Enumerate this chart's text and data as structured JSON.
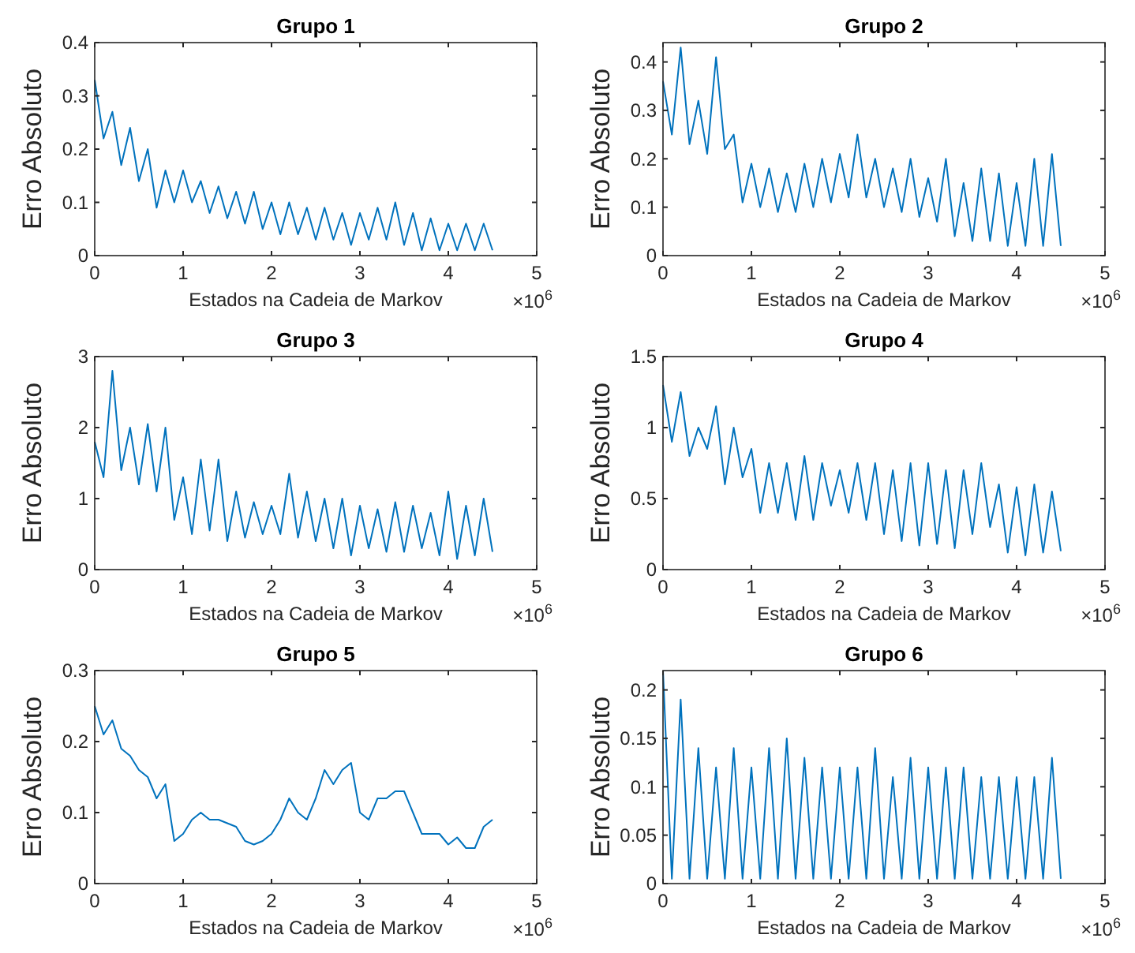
{
  "chart_data": [
    {
      "type": "line",
      "title": "Grupo 1",
      "xlabel": "Estados na Cadeia de Markov",
      "ylabel": "Erro Absoluto",
      "annotations": [
        "×10$^{6}$"
      ],
      "xlim": [
        0,
        5
      ],
      "xticks": [
        0,
        1,
        2,
        3,
        4,
        5
      ],
      "ylim": [
        0,
        0.4
      ],
      "yticks": [
        0,
        0.1,
        0.2,
        0.3,
        0.4
      ],
      "x": [
        0,
        0.1,
        0.2,
        0.3,
        0.4,
        0.5,
        0.6,
        0.7,
        0.8,
        0.9,
        1.0,
        1.1,
        1.2,
        1.3,
        1.4,
        1.5,
        1.6,
        1.7,
        1.8,
        1.9,
        2.0,
        2.1,
        2.2,
        2.3,
        2.4,
        2.5,
        2.6,
        2.7,
        2.8,
        2.9,
        3.0,
        3.1,
        3.2,
        3.3,
        3.4,
        3.5,
        3.6,
        3.7,
        3.8,
        3.9,
        4.0,
        4.1,
        4.2,
        4.3,
        4.4,
        4.5
      ],
      "series": [
        {
          "color": "#0072bd",
          "values": [
            0.33,
            0.22,
            0.27,
            0.17,
            0.24,
            0.14,
            0.2,
            0.09,
            0.16,
            0.1,
            0.16,
            0.1,
            0.14,
            0.08,
            0.13,
            0.07,
            0.12,
            0.06,
            0.12,
            0.05,
            0.1,
            0.04,
            0.1,
            0.04,
            0.09,
            0.03,
            0.09,
            0.03,
            0.08,
            0.02,
            0.08,
            0.03,
            0.09,
            0.03,
            0.1,
            0.02,
            0.08,
            0.01,
            0.07,
            0.01,
            0.06,
            0.01,
            0.06,
            0.01,
            0.06,
            0.01
          ]
        }
      ]
    },
    {
      "type": "line",
      "title": "Grupo 2",
      "xlabel": "Estados na Cadeia de Markov",
      "ylabel": "Erro Absoluto",
      "annotations": [
        "×10$^{6}$"
      ],
      "xlim": [
        0,
        5
      ],
      "xticks": [
        0,
        1,
        2,
        3,
        4,
        5
      ],
      "ylim": [
        0,
        0.44
      ],
      "yticks": [
        0,
        0.1,
        0.2,
        0.3,
        0.4
      ],
      "x": [
        0,
        0.1,
        0.2,
        0.3,
        0.4,
        0.5,
        0.6,
        0.7,
        0.8,
        0.9,
        1.0,
        1.1,
        1.2,
        1.3,
        1.4,
        1.5,
        1.6,
        1.7,
        1.8,
        1.9,
        2.0,
        2.1,
        2.2,
        2.3,
        2.4,
        2.5,
        2.6,
        2.7,
        2.8,
        2.9,
        3.0,
        3.1,
        3.2,
        3.3,
        3.4,
        3.5,
        3.6,
        3.7,
        3.8,
        3.9,
        4.0,
        4.1,
        4.2,
        4.3,
        4.4,
        4.5
      ],
      "series": [
        {
          "color": "#0072bd",
          "values": [
            0.36,
            0.25,
            0.43,
            0.23,
            0.32,
            0.21,
            0.41,
            0.22,
            0.25,
            0.11,
            0.19,
            0.1,
            0.18,
            0.09,
            0.17,
            0.09,
            0.19,
            0.1,
            0.2,
            0.11,
            0.21,
            0.12,
            0.25,
            0.12,
            0.2,
            0.1,
            0.18,
            0.09,
            0.2,
            0.08,
            0.16,
            0.07,
            0.2,
            0.04,
            0.15,
            0.03,
            0.18,
            0.03,
            0.17,
            0.02,
            0.15,
            0.02,
            0.2,
            0.02,
            0.21,
            0.02
          ]
        }
      ]
    },
    {
      "type": "line",
      "title": "Grupo 3",
      "xlabel": "Estados na Cadeia de Markov",
      "ylabel": "Erro Absoluto",
      "annotations": [
        "×10$^{6}$"
      ],
      "xlim": [
        0,
        5
      ],
      "xticks": [
        0,
        1,
        2,
        3,
        4,
        5
      ],
      "ylim": [
        0,
        3
      ],
      "yticks": [
        0,
        1,
        2,
        3
      ],
      "x": [
        0,
        0.1,
        0.2,
        0.3,
        0.4,
        0.5,
        0.6,
        0.7,
        0.8,
        0.9,
        1.0,
        1.1,
        1.2,
        1.3,
        1.4,
        1.5,
        1.6,
        1.7,
        1.8,
        1.9,
        2.0,
        2.1,
        2.2,
        2.3,
        2.4,
        2.5,
        2.6,
        2.7,
        2.8,
        2.9,
        3.0,
        3.1,
        3.2,
        3.3,
        3.4,
        3.5,
        3.6,
        3.7,
        3.8,
        3.9,
        4.0,
        4.1,
        4.2,
        4.3,
        4.4,
        4.5
      ],
      "series": [
        {
          "color": "#0072bd",
          "values": [
            1.8,
            1.3,
            2.8,
            1.4,
            2.0,
            1.2,
            2.05,
            1.1,
            2.0,
            0.7,
            1.3,
            0.5,
            1.55,
            0.55,
            1.55,
            0.4,
            1.1,
            0.45,
            0.95,
            0.5,
            0.9,
            0.5,
            1.35,
            0.45,
            1.1,
            0.4,
            1.0,
            0.3,
            1.0,
            0.2,
            0.9,
            0.3,
            0.85,
            0.25,
            0.95,
            0.25,
            0.9,
            0.3,
            0.8,
            0.2,
            1.1,
            0.15,
            0.9,
            0.2,
            1.0,
            0.25
          ]
        }
      ]
    },
    {
      "type": "line",
      "title": "Grupo 4",
      "xlabel": "Estados na Cadeia de Markov",
      "ylabel": "Erro Absoluto",
      "annotations": [
        "×10$^{6}$"
      ],
      "xlim": [
        0,
        5
      ],
      "xticks": [
        0,
        1,
        2,
        3,
        4,
        5
      ],
      "ylim": [
        0,
        1.5
      ],
      "yticks": [
        0,
        0.5,
        1,
        1.5
      ],
      "x": [
        0,
        0.1,
        0.2,
        0.3,
        0.4,
        0.5,
        0.6,
        0.7,
        0.8,
        0.9,
        1.0,
        1.1,
        1.2,
        1.3,
        1.4,
        1.5,
        1.6,
        1.7,
        1.8,
        1.9,
        2.0,
        2.1,
        2.2,
        2.3,
        2.4,
        2.5,
        2.6,
        2.7,
        2.8,
        2.9,
        3.0,
        3.1,
        3.2,
        3.3,
        3.4,
        3.5,
        3.6,
        3.7,
        3.8,
        3.9,
        4.0,
        4.1,
        4.2,
        4.3,
        4.4,
        4.5
      ],
      "series": [
        {
          "color": "#0072bd",
          "values": [
            1.3,
            0.9,
            1.25,
            0.8,
            1.0,
            0.85,
            1.15,
            0.6,
            1.0,
            0.65,
            0.85,
            0.4,
            0.75,
            0.4,
            0.75,
            0.35,
            0.8,
            0.35,
            0.75,
            0.45,
            0.7,
            0.4,
            0.75,
            0.35,
            0.75,
            0.25,
            0.7,
            0.2,
            0.75,
            0.17,
            0.75,
            0.18,
            0.7,
            0.15,
            0.7,
            0.25,
            0.75,
            0.3,
            0.6,
            0.12,
            0.58,
            0.1,
            0.6,
            0.12,
            0.55,
            0.13
          ]
        }
      ]
    },
    {
      "type": "line",
      "title": "Grupo 5",
      "xlabel": "Estados na Cadeia de Markov",
      "ylabel": "Erro Absoluto",
      "annotations": [
        "×10$^{6}$"
      ],
      "xlim": [
        0,
        5
      ],
      "xticks": [
        0,
        1,
        2,
        3,
        4,
        5
      ],
      "ylim": [
        0,
        0.3
      ],
      "yticks": [
        0,
        0.1,
        0.2,
        0.3
      ],
      "x": [
        0,
        0.1,
        0.2,
        0.3,
        0.4,
        0.5,
        0.6,
        0.7,
        0.8,
        0.9,
        1.0,
        1.1,
        1.2,
        1.3,
        1.4,
        1.5,
        1.6,
        1.7,
        1.8,
        1.9,
        2.0,
        2.1,
        2.2,
        2.3,
        2.4,
        2.5,
        2.6,
        2.7,
        2.8,
        2.9,
        3.0,
        3.1,
        3.2,
        3.3,
        3.4,
        3.5,
        3.6,
        3.7,
        3.8,
        3.9,
        4.0,
        4.1,
        4.2,
        4.3,
        4.4,
        4.5
      ],
      "series": [
        {
          "color": "#0072bd",
          "values": [
            0.25,
            0.21,
            0.23,
            0.19,
            0.18,
            0.16,
            0.15,
            0.12,
            0.14,
            0.06,
            0.07,
            0.09,
            0.1,
            0.09,
            0.09,
            0.085,
            0.08,
            0.06,
            0.055,
            0.06,
            0.07,
            0.09,
            0.12,
            0.1,
            0.09,
            0.12,
            0.16,
            0.14,
            0.16,
            0.17,
            0.1,
            0.09,
            0.12,
            0.12,
            0.13,
            0.13,
            0.1,
            0.07,
            0.07,
            0.07,
            0.055,
            0.065,
            0.05,
            0.05,
            0.08,
            0.09
          ]
        }
      ]
    },
    {
      "type": "line",
      "title": "Grupo 6",
      "xlabel": "Estados na Cadeia de Markov",
      "ylabel": "Erro Absoluto",
      "annotations": [
        "×10$^{6}$"
      ],
      "xlim": [
        0,
        5
      ],
      "xticks": [
        0,
        1,
        2,
        3,
        4,
        5
      ],
      "ylim": [
        0,
        0.22
      ],
      "yticks": [
        0,
        0.05,
        0.1,
        0.15,
        0.2
      ],
      "x": [
        0,
        0.1,
        0.2,
        0.3,
        0.4,
        0.5,
        0.6,
        0.7,
        0.8,
        0.9,
        1.0,
        1.1,
        1.2,
        1.3,
        1.4,
        1.5,
        1.6,
        1.7,
        1.8,
        1.9,
        2.0,
        2.1,
        2.2,
        2.3,
        2.4,
        2.5,
        2.6,
        2.7,
        2.8,
        2.9,
        3.0,
        3.1,
        3.2,
        3.3,
        3.4,
        3.5,
        3.6,
        3.7,
        3.8,
        3.9,
        4.0,
        4.1,
        4.2,
        4.3,
        4.4,
        4.5
      ],
      "series": [
        {
          "color": "#0072bd",
          "values": [
            0.22,
            0.005,
            0.19,
            0.005,
            0.14,
            0.005,
            0.12,
            0.005,
            0.14,
            0.005,
            0.12,
            0.005,
            0.14,
            0.005,
            0.15,
            0.005,
            0.13,
            0.005,
            0.12,
            0.005,
            0.12,
            0.005,
            0.12,
            0.005,
            0.14,
            0.005,
            0.11,
            0.005,
            0.13,
            0.005,
            0.12,
            0.005,
            0.12,
            0.005,
            0.12,
            0.005,
            0.11,
            0.005,
            0.11,
            0.005,
            0.11,
            0.005,
            0.11,
            0.005,
            0.13,
            0.005
          ]
        }
      ]
    }
  ]
}
